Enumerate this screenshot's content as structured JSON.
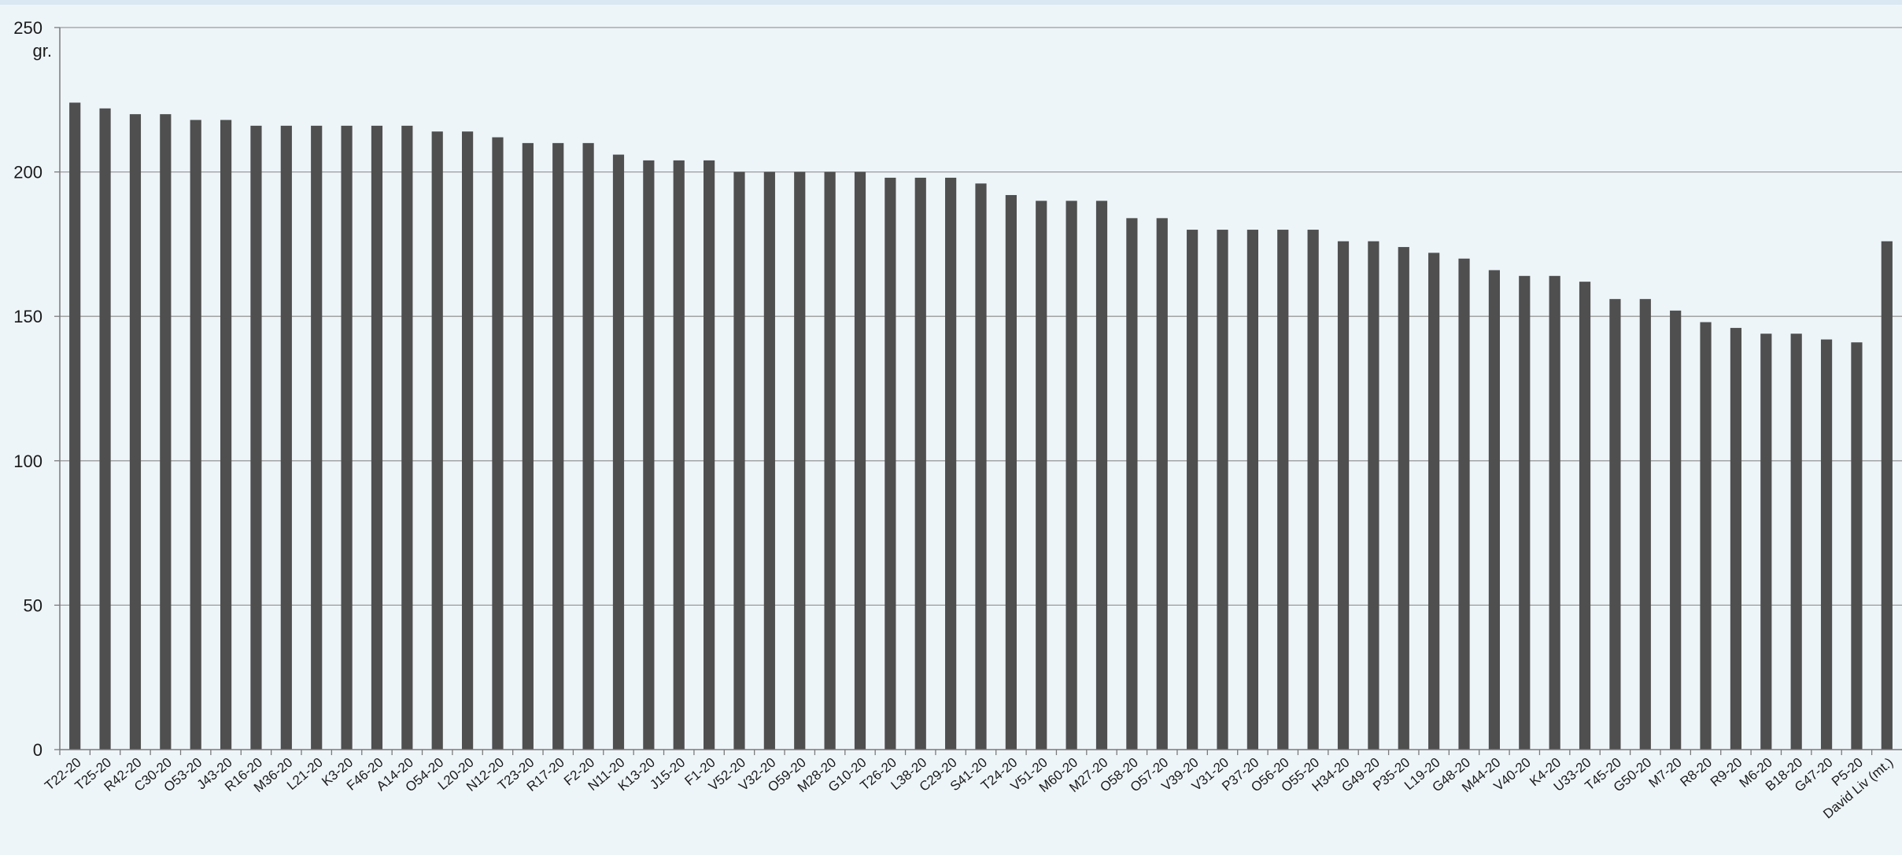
{
  "chart_data": {
    "type": "bar",
    "unit": "gr.",
    "ylim": [
      0,
      250
    ],
    "yticks": [
      "0",
      "50",
      "100",
      "150",
      "200",
      "250"
    ],
    "grid": true,
    "bar_color": "#4f4f4f",
    "categories": [
      "T22-20",
      "T25-20",
      "R42-20",
      "C30-20",
      "O53-20",
      "J43-20",
      "R16-20",
      "M36-20",
      "L21-20",
      "K3-20",
      "F46-20",
      "A14-20",
      "O54-20",
      "L20-20",
      "N12-20",
      "T23-20",
      "R17-20",
      "F2-20",
      "N11-20",
      "K13-20",
      "J15-20",
      "F1-20",
      "V52-20",
      "V32-20",
      "O59-20",
      "M28-20",
      "G10-20",
      "T26-20",
      "L38-20",
      "C29-20",
      "S41-20",
      "T24-20",
      "V51-20",
      "M60-20",
      "M27-20",
      "O58-20",
      "O57-20",
      "V39-20",
      "V31-20",
      "P37-20",
      "O56-20",
      "O55-20",
      "H34-20",
      "G49-20",
      "P35-20",
      "L19-20",
      "G48-20",
      "M44-20",
      "V40-20",
      "K4-20",
      "U33-20",
      "T45-20",
      "G50-20",
      "M7-20",
      "R8-20",
      "R9-20",
      "M6-20",
      "B18-20",
      "G47-20",
      "P5-20",
      "David Liv (mt.)"
    ],
    "values": [
      224,
      222,
      220,
      220,
      218,
      218,
      216,
      216,
      216,
      216,
      216,
      216,
      214,
      214,
      212,
      210,
      210,
      210,
      206,
      204,
      204,
      204,
      200,
      200,
      200,
      200,
      200,
      198,
      198,
      198,
      196,
      192,
      190,
      190,
      190,
      184,
      184,
      180,
      180,
      180,
      180,
      180,
      176,
      176,
      174,
      172,
      170,
      166,
      164,
      164,
      162,
      156,
      156,
      152,
      148,
      146,
      144,
      144,
      142,
      141,
      176
    ]
  }
}
